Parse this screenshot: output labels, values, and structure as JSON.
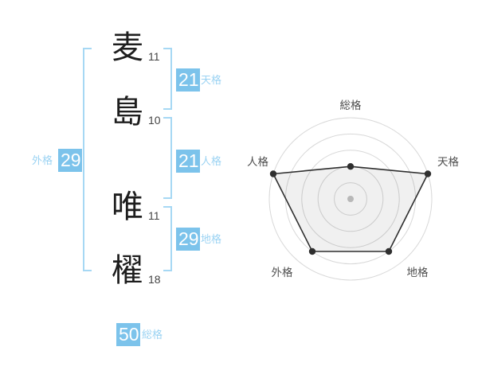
{
  "colors": {
    "badge-bg": "#7cc3eb",
    "badge-text": "#ffffff",
    "label-blue": "#9bd3f3",
    "bracket-blue": "#a6d8f4",
    "char-color": "#1e1e1e",
    "strokes-color": "#444444",
    "radar-grid": "#d8d8d8",
    "radar-line": "#2f2f2f",
    "radar-fill": "rgba(0,0,0,0.06)",
    "radar-label": "#4f4f4f",
    "radar-center-dot": "#c4c4c4"
  },
  "name": {
    "full": "麦島 唯櫂",
    "chars": [
      {
        "char": "麦",
        "strokes": "11"
      },
      {
        "char": "島",
        "strokes": "10"
      },
      {
        "char": "唯",
        "strokes": "11"
      },
      {
        "char": "櫂",
        "strokes": "18"
      }
    ]
  },
  "badges": {
    "tenkaku": {
      "label": "天格",
      "value": "21"
    },
    "jinkaku": {
      "label": "人格",
      "value": "21"
    },
    "chikaku": {
      "label": "地格",
      "value": "29"
    },
    "gaikaku": {
      "label": "外格",
      "value": "29"
    },
    "soukaku": {
      "label": "総格",
      "value": "50"
    }
  },
  "chart_data": {
    "type": "radar",
    "axes": [
      "総格",
      "天格",
      "地格",
      "外格",
      "人格"
    ],
    "values": [
      40,
      100,
      80,
      80,
      100
    ],
    "max": 100,
    "grid_rings": [
      20,
      40,
      60,
      80,
      100
    ],
    "grid": "concentric-circles",
    "legend": "none",
    "kaku_numbers": {
      "総格": 50,
      "天格": 21,
      "人格": 21,
      "地格": 29,
      "外格": 29
    }
  }
}
